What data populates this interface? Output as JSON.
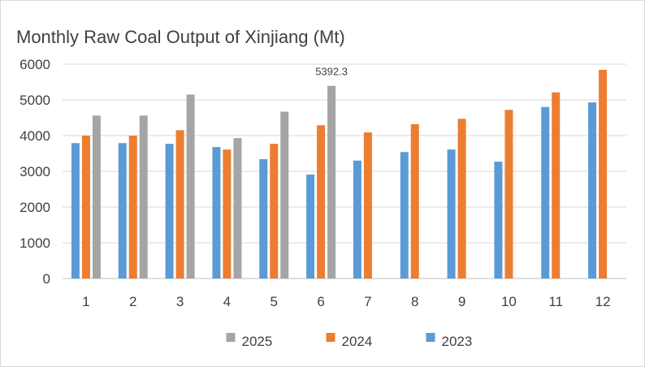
{
  "chart_data": {
    "type": "bar",
    "title": "Monthly Raw Coal Output of Xinjiang (Mt)",
    "xlabel": "",
    "ylabel": "",
    "categories": [
      "1",
      "2",
      "3",
      "4",
      "5",
      "6",
      "7",
      "8",
      "9",
      "10",
      "11",
      "12"
    ],
    "ylim": [
      0,
      6000
    ],
    "yticks": [
      0,
      1000,
      2000,
      3000,
      4000,
      5000,
      6000
    ],
    "grid": true,
    "legend_position": "bottom",
    "legend_order": [
      "2025",
      "2024",
      "2023"
    ],
    "series": [
      {
        "name": "2023",
        "color": "#5b9bd5",
        "values": [
          3790,
          3790,
          3770,
          3680,
          3340,
          2910,
          3300,
          3540,
          3610,
          3270,
          4800,
          4930
        ]
      },
      {
        "name": "2024",
        "color": "#ed7d31",
        "values": [
          4000,
          4000,
          4150,
          3610,
          3770,
          4290,
          4090,
          4320,
          4470,
          4720,
          5210,
          5840
        ]
      },
      {
        "name": "2025",
        "color": "#a5a5a5",
        "values": [
          4560,
          4560,
          5150,
          3930,
          4670,
          5392.3,
          null,
          null,
          null,
          null,
          null,
          null
        ]
      }
    ],
    "annotations": [
      {
        "series": "2025",
        "category": "6",
        "text": "5392.3"
      }
    ]
  }
}
